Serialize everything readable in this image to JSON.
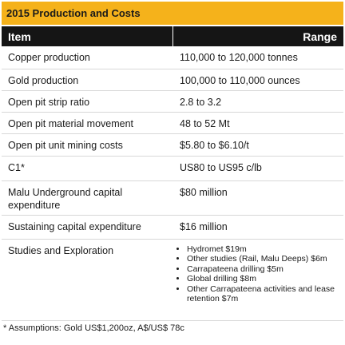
{
  "title": "2015 Production and Costs",
  "table": {
    "header": [
      "Item",
      "Range"
    ],
    "rows": [
      [
        "Copper production",
        "110,000 to 120,000 tonnes"
      ],
      [
        "Gold production",
        "100,000 to 110,000 ounces"
      ],
      [
        "Open pit strip ratio",
        "2.8 to 3.2"
      ],
      [
        "Open pit material movement",
        "48 to 52 Mt"
      ],
      [
        "Open pit unit mining costs",
        "$5.80 to $6.10/t"
      ],
      [
        "C1*",
        "US80 to US95 c/lb"
      ],
      [
        "Malu Underground capital expenditure",
        "$80 million"
      ],
      [
        "Sustaining capital expenditure",
        "$16 million"
      ],
      [
        "Studies and Exploration",
        [
          "Hydromet $19m",
          "Other studies (Rail, Malu Deeps) $6m",
          "Carrapateena drilling $5m",
          "Global drilling $8m",
          "Other Carrapateena activities and lease retention $7m"
        ]
      ]
    ]
  },
  "footnote": "* Assumptions: Gold US$1,200oz, A$/US$ 78c"
}
